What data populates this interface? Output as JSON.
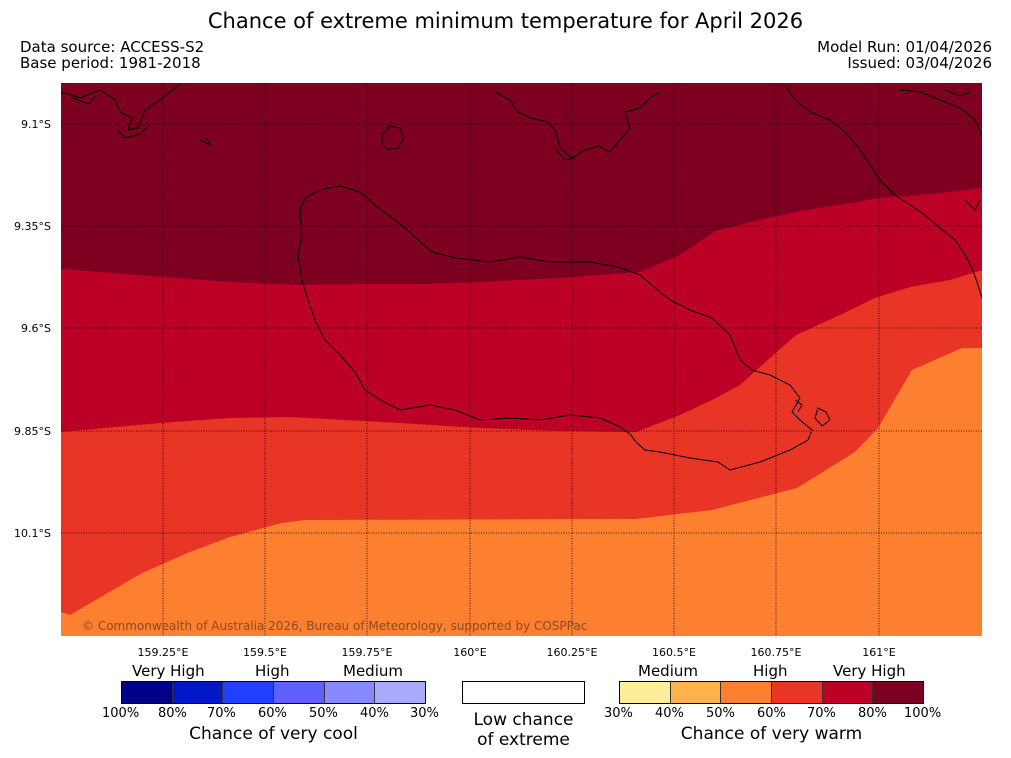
{
  "header": {
    "title": "Chance of extreme minimum temperature for April 2026",
    "data_source": "Data source: ACCESS-S2",
    "base_period": "Base period: 1981-2018",
    "model_run": "Model Run: 01/04/2026",
    "issued": "Issued: 03/04/2026"
  },
  "map": {
    "lat_labels": [
      "9.1°S",
      "9.35°S",
      "9.6°S",
      "9.85°S",
      "10.1°S"
    ],
    "lon_labels": [
      "159.25°E",
      "159.5°E",
      "159.75°E",
      "160°E",
      "160.25°E",
      "160.5°E",
      "160.75°E",
      "161°E"
    ],
    "copyright": "© Commonwealth of Australia 2026, Bureau of Meteorology, supported by COSPPac",
    "colors": {
      "very_high_warm": "#7d0020",
      "high_warm": "#bd0026",
      "medium_warm": "#e83525",
      "low_warm": "#fd8030"
    }
  },
  "legend": {
    "cool": {
      "categories": [
        "Very High",
        "High",
        "Medium"
      ],
      "colors": [
        "#00008b",
        "#0018c8",
        "#2040ff",
        "#6060ff",
        "#8888ff",
        "#aaaaff"
      ],
      "ticks": [
        "100%",
        "80%",
        "70%",
        "60%",
        "50%",
        "40%",
        "30%"
      ],
      "caption": "Chance of very cool"
    },
    "neutral": {
      "caption_line1": "Low chance",
      "caption_line2": "of extreme"
    },
    "warm": {
      "categories": [
        "Medium",
        "High",
        "Very High"
      ],
      "colors": [
        "#ffee99",
        "#feb24c",
        "#fd8030",
        "#e83525",
        "#bd0026",
        "#7d0020"
      ],
      "ticks": [
        "30%",
        "40%",
        "50%",
        "60%",
        "70%",
        "80%",
        "100%"
      ],
      "caption": "Chance of very warm"
    }
  }
}
